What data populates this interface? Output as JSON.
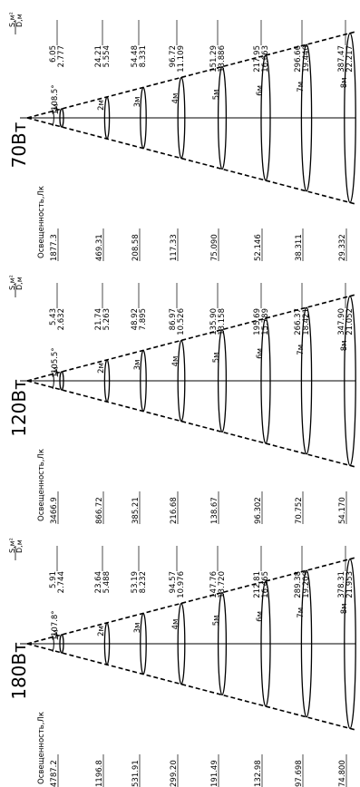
{
  "ylabel": "Освещенность,Лк",
  "ratio": {
    "top": "S,м²",
    "bottom": "D,м"
  },
  "panels": [
    {
      "title": "70Вт",
      "angle": "108.5°",
      "rows": [
        {
          "dist": "1м",
          "lux": "1877.3",
          "s": "6.05",
          "d": "2.777"
        },
        {
          "dist": "2м",
          "lux": "469.31",
          "s": "24.21",
          "d": "5.554"
        },
        {
          "dist": "3м",
          "lux": "208.58",
          "s": "54.48",
          "d": "8.331"
        },
        {
          "dist": "4м",
          "lux": "117.33",
          "s": "96.72",
          "d": "11.109"
        },
        {
          "dist": "5м",
          "lux": "75.090",
          "s": "151.29",
          "d": "13.886"
        },
        {
          "dist": "6м",
          "lux": "52.146",
          "s": "217.95",
          "d": "16.663"
        },
        {
          "dist": "7м",
          "lux": "38.311",
          "s": "296.66",
          "d": "19.440"
        },
        {
          "dist": "8м",
          "lux": "29.332",
          "s": "387.47",
          "d": "22.217"
        }
      ]
    },
    {
      "title": "120Вт",
      "angle": "105.5°",
      "rows": [
        {
          "dist": "1м",
          "lux": "3466.9",
          "s": "5.43",
          "d": "2.632"
        },
        {
          "dist": "2м",
          "lux": "866.72",
          "s": "21.74",
          "d": "5.263"
        },
        {
          "dist": "3м",
          "lux": "385.21",
          "s": "48.92",
          "d": "7.895"
        },
        {
          "dist": "4м",
          "lux": "216.68",
          "s": "86.97",
          "d": "10.526"
        },
        {
          "dist": "5м",
          "lux": "138.67",
          "s": "135.90",
          "d": "13.158"
        },
        {
          "dist": "6м",
          "lux": "96.302",
          "s": "195.69",
          "d": "15.789"
        },
        {
          "dist": "7м",
          "lux": "70.752",
          "s": "266.37",
          "d": "18.421"
        },
        {
          "dist": "8м",
          "lux": "54.170",
          "s": "347.90",
          "d": "21.052"
        }
      ]
    },
    {
      "title": "180Вт",
      "angle": "107.8°",
      "rows": [
        {
          "dist": "1м",
          "lux": "4787.2",
          "s": "5.91",
          "d": "2.744"
        },
        {
          "dist": "2м",
          "lux": "1196.8",
          "s": "23.64",
          "d": "5.488"
        },
        {
          "dist": "3м",
          "lux": "531.91",
          "s": "53.19",
          "d": "8.232"
        },
        {
          "dist": "4м",
          "lux": "299.20",
          "s": "94.57",
          "d": "10.976"
        },
        {
          "dist": "5м",
          "lux": "191.49",
          "s": "147.76",
          "d": "13.720"
        },
        {
          "dist": "6м",
          "lux": "132.98",
          "s": "212.81",
          "d": "16.465"
        },
        {
          "dist": "7м",
          "lux": "97.698",
          "s": "289.38",
          "d": "19.209"
        },
        {
          "dist": "8м",
          "lux": "74.800",
          "s": "378.31",
          "d": "21.953"
        }
      ]
    }
  ]
}
